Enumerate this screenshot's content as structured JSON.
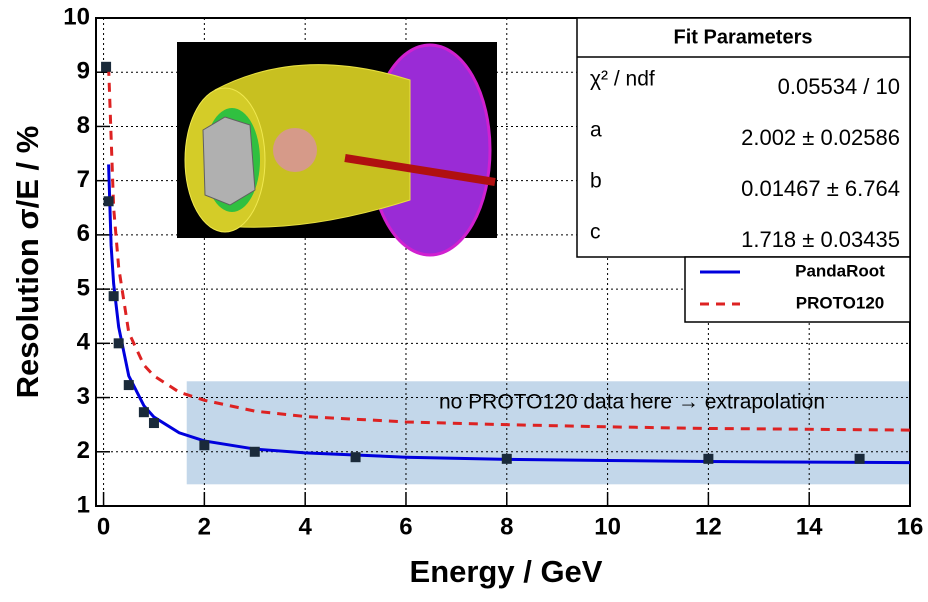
{
  "chart_data": {
    "type": "line",
    "xlabel": "Energy / GeV",
    "ylabel": "Resolution σ/E / %",
    "xlim": [
      -0.15,
      16
    ],
    "ylim": [
      1,
      10
    ],
    "xticks": [
      0,
      2,
      4,
      6,
      8,
      10,
      12,
      14,
      16
    ],
    "yticks": [
      1,
      2,
      3,
      4,
      5,
      6,
      7,
      8,
      9,
      10
    ],
    "grid": true,
    "series": [
      {
        "name": "PandaRoot",
        "color": "#0000dd",
        "style": "solid",
        "x": [
          0.1,
          0.15,
          0.2,
          0.3,
          0.5,
          0.8,
          1,
          1.5,
          2,
          3,
          4,
          6,
          8,
          10,
          12,
          16
        ],
        "values": [
          7.3,
          5.8,
          5.1,
          4.3,
          3.4,
          2.85,
          2.64,
          2.35,
          2.2,
          2.05,
          1.98,
          1.9,
          1.86,
          1.84,
          1.82,
          1.8
        ]
      },
      {
        "name": "PROTO120",
        "color": "#dd2222",
        "style": "dashed",
        "x": [
          0.1,
          0.2,
          0.3,
          0.5,
          0.8,
          1,
          1.5,
          2,
          3,
          4,
          6,
          8,
          10,
          12,
          16
        ],
        "values": [
          9.1,
          6.5,
          5.4,
          4.2,
          3.6,
          3.4,
          3.1,
          2.95,
          2.75,
          2.65,
          2.55,
          2.5,
          2.46,
          2.43,
          2.4
        ]
      }
    ],
    "points": {
      "color": "#1a2a3a",
      "x": [
        0.05,
        0.1,
        0.2,
        0.3,
        0.5,
        0.8,
        1,
        2,
        3,
        5,
        8,
        12,
        15
      ],
      "values": [
        9.1,
        6.62,
        4.87,
        4.0,
        3.23,
        2.73,
        2.53,
        2.12,
        2.0,
        1.9,
        1.87,
        1.87,
        1.87
      ]
    },
    "band": {
      "xlim": [
        1.65,
        16
      ],
      "ylim": [
        1.4,
        3.3
      ],
      "color": "#b8d0e6"
    },
    "annotation": "no PROTO120 data here → extrapolation",
    "legend": "upper right",
    "fit_parameters": {
      "title": "Fit Parameters",
      "rows": [
        [
          "χ² / ndf",
          "0.05534 / 10"
        ],
        [
          "a",
          "2.002 ± 0.02586"
        ],
        [
          "b",
          "0.01467 ± 6.764"
        ],
        [
          "c",
          "1.718 ± 0.03435"
        ]
      ]
    }
  }
}
